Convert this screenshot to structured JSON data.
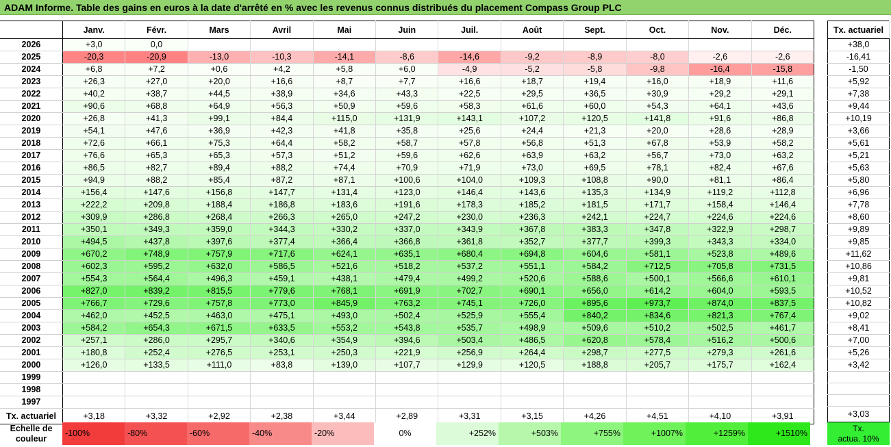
{
  "title": "ADAM Informe. Table des gains en euros à la date d'arrêté en % avec les revenus connus distribués du placement Compass Group PLC",
  "months": [
    "Janv.",
    "Févr.",
    "Mars",
    "Avril",
    "Mai",
    "Juin",
    "Juil.",
    "Août",
    "Sept.",
    "Oct.",
    "Nov.",
    "Déc."
  ],
  "side_header": "Tx. actuariel",
  "rows": [
    {
      "year": "2026",
      "vals": [
        "+3,0",
        "0,0",
        "",
        "",
        "",
        "",
        "",
        "",
        "",
        "",
        "",
        ""
      ],
      "tx": "+38,0"
    },
    {
      "year": "2025",
      "vals": [
        "-20,3",
        "-20,9",
        "-13,0",
        "-10,3",
        "-14,1",
        "-8,6",
        "-14,6",
        "-9,2",
        "-8,9",
        "-8,0",
        "-2,6",
        "-2,6"
      ],
      "tx": "-16,41"
    },
    {
      "year": "2024",
      "vals": [
        "+6,8",
        "+7,2",
        "+0,6",
        "+4,2",
        "+5,8",
        "+6,0",
        "-4,9",
        "-5,2",
        "-5,8",
        "-9,8",
        "-16,4",
        "-15,8"
      ],
      "tx": "-1,50"
    },
    {
      "year": "2023",
      "vals": [
        "+26,3",
        "+27,0",
        "+20,0",
        "+16,6",
        "+8,7",
        "+7,7",
        "+16,6",
        "+18,7",
        "+19,4",
        "+16,0",
        "+18,9",
        "+11,6"
      ],
      "tx": "+5,92"
    },
    {
      "year": "2022",
      "vals": [
        "+40,2",
        "+38,7",
        "+44,5",
        "+38,9",
        "+34,6",
        "+43,3",
        "+22,5",
        "+29,5",
        "+36,5",
        "+30,9",
        "+29,2",
        "+29,1"
      ],
      "tx": "+7,38"
    },
    {
      "year": "2021",
      "vals": [
        "+90,6",
        "+68,8",
        "+64,9",
        "+56,3",
        "+50,9",
        "+59,6",
        "+58,3",
        "+61,6",
        "+60,0",
        "+54,3",
        "+64,1",
        "+43,6"
      ],
      "tx": "+9,44"
    },
    {
      "year": "2020",
      "vals": [
        "+26,8",
        "+41,3",
        "+99,1",
        "+84,4",
        "+115,0",
        "+131,9",
        "+143,1",
        "+107,2",
        "+120,5",
        "+141,8",
        "+91,6",
        "+86,8"
      ],
      "tx": "+10,19"
    },
    {
      "year": "2019",
      "vals": [
        "+54,1",
        "+47,6",
        "+36,9",
        "+42,3",
        "+41,8",
        "+35,8",
        "+25,6",
        "+24,4",
        "+21,3",
        "+20,0",
        "+28,6",
        "+28,9"
      ],
      "tx": "+3,66"
    },
    {
      "year": "2018",
      "vals": [
        "+72,6",
        "+66,1",
        "+75,3",
        "+64,4",
        "+58,2",
        "+58,7",
        "+57,8",
        "+56,8",
        "+51,3",
        "+67,8",
        "+53,9",
        "+58,2"
      ],
      "tx": "+5,61"
    },
    {
      "year": "2017",
      "vals": [
        "+76,6",
        "+65,3",
        "+65,3",
        "+57,3",
        "+51,2",
        "+59,6",
        "+62,6",
        "+63,9",
        "+63,2",
        "+56,7",
        "+73,0",
        "+63,2"
      ],
      "tx": "+5,21"
    },
    {
      "year": "2016",
      "vals": [
        "+86,5",
        "+82,7",
        "+89,4",
        "+88,2",
        "+74,4",
        "+70,9",
        "+71,9",
        "+73,0",
        "+69,5",
        "+78,1",
        "+82,4",
        "+67,6"
      ],
      "tx": "+5,63"
    },
    {
      "year": "2015",
      "vals": [
        "+94,9",
        "+88,2",
        "+85,4",
        "+87,2",
        "+87,1",
        "+100,6",
        "+104,0",
        "+109,3",
        "+108,8",
        "+90,0",
        "+81,1",
        "+86,4"
      ],
      "tx": "+5,80"
    },
    {
      "year": "2014",
      "vals": [
        "+156,4",
        "+147,6",
        "+156,8",
        "+147,7",
        "+131,4",
        "+123,0",
        "+146,4",
        "+143,6",
        "+135,3",
        "+134,9",
        "+119,2",
        "+112,8"
      ],
      "tx": "+6,96"
    },
    {
      "year": "2013",
      "vals": [
        "+222,2",
        "+209,8",
        "+188,4",
        "+186,8",
        "+183,6",
        "+191,6",
        "+178,3",
        "+185,2",
        "+181,5",
        "+171,7",
        "+158,4",
        "+146,4"
      ],
      "tx": "+7,78"
    },
    {
      "year": "2012",
      "vals": [
        "+309,9",
        "+286,8",
        "+268,4",
        "+266,3",
        "+265,0",
        "+247,2",
        "+230,0",
        "+236,3",
        "+242,1",
        "+224,7",
        "+224,6",
        "+224,6"
      ],
      "tx": "+8,60"
    },
    {
      "year": "2011",
      "vals": [
        "+350,1",
        "+349,3",
        "+359,0",
        "+344,3",
        "+330,2",
        "+337,0",
        "+343,9",
        "+367,8",
        "+383,3",
        "+347,8",
        "+322,9",
        "+298,7"
      ],
      "tx": "+9,89"
    },
    {
      "year": "2010",
      "vals": [
        "+494,5",
        "+437,8",
        "+397,6",
        "+377,4",
        "+366,4",
        "+366,8",
        "+361,8",
        "+352,7",
        "+377,7",
        "+399,3",
        "+343,3",
        "+334,0"
      ],
      "tx": "+9,85"
    },
    {
      "year": "2009",
      "vals": [
        "+670,2",
        "+748,9",
        "+757,9",
        "+717,6",
        "+624,1",
        "+635,1",
        "+680,4",
        "+694,8",
        "+604,6",
        "+581,1",
        "+523,8",
        "+489,6"
      ],
      "tx": "+11,62"
    },
    {
      "year": "2008",
      "vals": [
        "+602,3",
        "+595,2",
        "+632,0",
        "+586,5",
        "+521,6",
        "+518,2",
        "+537,2",
        "+551,1",
        "+584,2",
        "+712,5",
        "+705,8",
        "+731,5"
      ],
      "tx": "+10,86"
    },
    {
      "year": "2007",
      "vals": [
        "+554,3",
        "+564,4",
        "+496,3",
        "+459,1",
        "+438,1",
        "+479,4",
        "+499,2",
        "+520,6",
        "+588,6",
        "+500,1",
        "+566,6",
        "+610,1"
      ],
      "tx": "+9,81"
    },
    {
      "year": "2006",
      "vals": [
        "+827,0",
        "+839,2",
        "+815,5",
        "+779,6",
        "+768,1",
        "+691,9",
        "+702,7",
        "+690,1",
        "+656,0",
        "+614,2",
        "+604,0",
        "+593,5"
      ],
      "tx": "+10,52"
    },
    {
      "year": "2005",
      "vals": [
        "+766,7",
        "+729,6",
        "+757,8",
        "+773,0",
        "+845,9",
        "+763,2",
        "+745,1",
        "+726,0",
        "+895,6",
        "+973,7",
        "+874,0",
        "+837,5"
      ],
      "tx": "+10,82"
    },
    {
      "year": "2004",
      "vals": [
        "+462,0",
        "+452,5",
        "+463,0",
        "+475,1",
        "+493,0",
        "+502,4",
        "+525,9",
        "+555,4",
        "+840,2",
        "+834,6",
        "+821,3",
        "+767,4"
      ],
      "tx": "+9,02"
    },
    {
      "year": "2003",
      "vals": [
        "+584,2",
        "+654,3",
        "+671,5",
        "+633,5",
        "+553,2",
        "+543,8",
        "+535,7",
        "+498,9",
        "+509,6",
        "+510,2",
        "+502,5",
        "+461,7"
      ],
      "tx": "+8,41"
    },
    {
      "year": "2002",
      "vals": [
        "+257,1",
        "+286,0",
        "+295,7",
        "+340,6",
        "+354,9",
        "+394,6",
        "+503,4",
        "+486,5",
        "+620,8",
        "+578,4",
        "+516,2",
        "+500,6"
      ],
      "tx": "+7,00"
    },
    {
      "year": "2001",
      "vals": [
        "+180,8",
        "+252,4",
        "+276,5",
        "+253,1",
        "+250,3",
        "+221,9",
        "+256,9",
        "+264,4",
        "+298,7",
        "+277,5",
        "+279,3",
        "+261,6"
      ],
      "tx": "+5,26"
    },
    {
      "year": "2000",
      "vals": [
        "+126,0",
        "+133,5",
        "+111,0",
        "+83,8",
        "+139,0",
        "+107,7",
        "+129,9",
        "+120,5",
        "+188,8",
        "+205,7",
        "+175,7",
        "+162,4"
      ],
      "tx": "+3,42"
    },
    {
      "year": "1999",
      "vals": [
        "",
        "",
        "",
        "",
        "",
        "",
        "",
        "",
        "",
        "",
        "",
        ""
      ],
      "tx": ""
    },
    {
      "year": "1998",
      "vals": [
        "",
        "",
        "",
        "",
        "",
        "",
        "",
        "",
        "",
        "",
        "",
        ""
      ],
      "tx": ""
    },
    {
      "year": "1997",
      "vals": [
        "",
        "",
        "",
        "",
        "",
        "",
        "",
        "",
        "",
        "",
        "",
        ""
      ],
      "tx": ""
    }
  ],
  "footer": {
    "label": "Tx. actuariel",
    "vals": [
      "+3,18",
      "+3,32",
      "+2,92",
      "+2,38",
      "+3,44",
      "+2,89",
      "+3,31",
      "+3,15",
      "+4,26",
      "+4,51",
      "+4,10",
      "+3,91"
    ],
    "tx": "+3,03"
  },
  "scale": {
    "label_line1": "Echelle de",
    "label_line2": "couleur",
    "cells": [
      {
        "text": "-100%",
        "color": "#f23c3c",
        "align": "left"
      },
      {
        "text": "-80%",
        "color": "#f45252",
        "align": "left"
      },
      {
        "text": "-60%",
        "color": "#f66a6a",
        "align": "left"
      },
      {
        "text": "-40%",
        "color": "#f88a8a",
        "align": "left"
      },
      {
        "text": "-20%",
        "color": "#fbbcbc",
        "align": "left"
      },
      {
        "text": "0%",
        "color": "#ffffff",
        "align": "center"
      },
      {
        "text": "+252%",
        "color": "#dcfbd8",
        "align": "right"
      },
      {
        "text": "+503%",
        "color": "#b6f7ab",
        "align": "right"
      },
      {
        "text": "+755%",
        "color": "#8ef57e",
        "align": "right"
      },
      {
        "text": "+1007%",
        "color": "#6ff25a",
        "align": "right"
      },
      {
        "text": "+1259%",
        "color": "#51ef3b",
        "align": "right"
      },
      {
        "text": "+1510%",
        "color": "#2fe81c",
        "align": "right"
      }
    ],
    "side_line1": "Tx.",
    "side_line2": "actua. 10%",
    "side_color": "#33ee33"
  }
}
